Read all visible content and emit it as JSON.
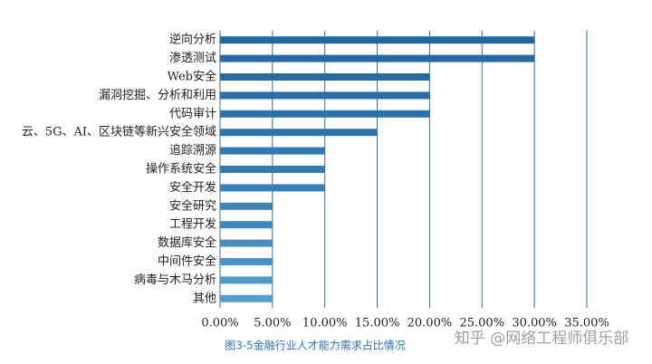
{
  "chart_data": {
    "type": "bar",
    "orientation": "horizontal",
    "caption": "图3-5金融行业人才能力需求占比情况",
    "watermark": "知乎 @网络工程师俱乐部",
    "categories": [
      "逆向分析",
      "渗透测试",
      "Web安全",
      "漏洞挖掘、分析和利用",
      "代码审计",
      "云、5G、AI、区块链等新兴安全领域",
      "追踪溯源",
      "操作系统安全",
      "安全开发",
      "安全研究",
      "工程开发",
      "数据库安全",
      "中间件安全",
      "病毒与木马分析",
      "其他"
    ],
    "values": [
      30,
      30,
      20,
      20,
      20,
      15,
      10,
      10,
      10,
      5,
      5,
      5,
      5,
      5,
      5
    ],
    "colors": [
      "#2366a0",
      "#2568a2",
      "#276ba5",
      "#296ea8",
      "#2b71aa",
      "#2e74ad",
      "#3177b0",
      "#347bb3",
      "#377fb6",
      "#3b83b9",
      "#3f88bd",
      "#448dc0",
      "#4992c4",
      "#4f98c8",
      "#559ecc"
    ],
    "xlim": [
      0,
      35
    ],
    "xticks": [
      {
        "value": 0,
        "label": "0.00%"
      },
      {
        "value": 5,
        "label": "5.00%"
      },
      {
        "value": 10,
        "label": "10.00%"
      },
      {
        "value": 15,
        "label": "15.00%"
      },
      {
        "value": 20,
        "label": "20.00%"
      },
      {
        "value": 25,
        "label": "25.00%"
      },
      {
        "value": 30,
        "label": "30.00%"
      },
      {
        "value": 35,
        "label": "35.00%"
      }
    ],
    "grid": true,
    "grid_color": "#2a6ea6"
  }
}
